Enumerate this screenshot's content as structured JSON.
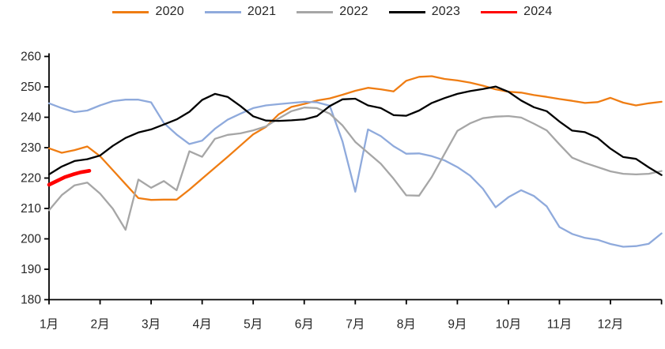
{
  "legend": {
    "items": [
      "2020",
      "2021",
      "2022",
      "2023",
      "2024"
    ]
  },
  "axes": {
    "y": {
      "min": 180,
      "max": 260,
      "step": 10,
      "tick_labels": [
        "180",
        "190",
        "200",
        "210",
        "220",
        "230",
        "240",
        "250",
        "260"
      ]
    },
    "x": {
      "tick_labels": [
        "1月",
        "2月",
        "3月",
        "4月",
        "5月",
        "6月",
        "7月",
        "8月",
        "9月",
        "10月",
        "11月",
        "12月"
      ]
    }
  },
  "colors": {
    "axis": "#000000",
    "text": "#262626",
    "background": "#ffffff"
  },
  "chart_data": {
    "type": "line",
    "title": "",
    "xlabel": "",
    "ylabel": "",
    "ylim": [
      180,
      260
    ],
    "x_unit": "month (0 = Jan 1, 12 = Dec 31)",
    "grid": false,
    "legend_position": "top-center",
    "series": [
      {
        "name": "2020",
        "color": "#EF7D13",
        "width": 2.3,
        "t0": 0,
        "dt": 0.25,
        "values": [
          229.8,
          228.3,
          229.2,
          230.4,
          227.2,
          222.6,
          218.0,
          213.4,
          212.8,
          212.9,
          212.9,
          216.2,
          219.8,
          223.4,
          227.0,
          230.7,
          234.4,
          236.8,
          241.0,
          243.4,
          244.4,
          245.5,
          246.2,
          247.4,
          248.7,
          249.7,
          249.2,
          248.5,
          252.0,
          253.3,
          253.5,
          252.6,
          252.1,
          251.4,
          250.4,
          249.2,
          248.4,
          248.1,
          247.3,
          246.7,
          246.0,
          245.4,
          244.7,
          245.0,
          246.4,
          244.8,
          243.9,
          244.6,
          245.1
        ]
      },
      {
        "name": "2021",
        "color": "#8FAADC",
        "width": 2.3,
        "t0": 0,
        "dt": 0.25,
        "values": [
          244.6,
          243.0,
          241.7,
          242.2,
          243.9,
          245.3,
          245.8,
          245.8,
          244.9,
          238.1,
          234.3,
          231.2,
          232.3,
          236.2,
          239.2,
          241.2,
          243.0,
          243.9,
          244.3,
          244.7,
          245.1,
          244.9,
          243.8,
          232.0,
          215.5,
          236.0,
          233.8,
          230.5,
          228.0,
          228.1,
          227.2,
          225.8,
          223.6,
          220.8,
          216.5,
          210.4,
          213.7,
          216.0,
          214.1,
          210.7,
          203.9,
          201.6,
          200.3,
          199.7,
          198.3,
          197.4,
          197.6,
          198.4,
          201.8
        ]
      },
      {
        "name": "2022",
        "color": "#A6A6A6",
        "width": 2.3,
        "t0": 0,
        "dt": 0.25,
        "values": [
          209.4,
          214.4,
          217.6,
          218.5,
          214.9,
          209.9,
          203.0,
          219.5,
          216.8,
          219.0,
          216.0,
          228.8,
          227.0,
          232.9,
          234.2,
          234.7,
          235.7,
          237.0,
          239.6,
          242.0,
          243.2,
          243.0,
          241.2,
          237.3,
          231.9,
          228.3,
          224.7,
          219.8,
          214.3,
          214.2,
          220.4,
          228.0,
          235.5,
          238.0,
          239.7,
          240.2,
          240.4,
          239.9,
          237.9,
          235.7,
          231.1,
          226.7,
          225.0,
          223.6,
          222.2,
          221.4,
          221.2,
          221.4,
          222.3
        ]
      },
      {
        "name": "2023",
        "color": "#000000",
        "width": 2.3,
        "t0": 0,
        "dt": 0.25,
        "values": [
          221.2,
          223.8,
          225.6,
          226.2,
          227.4,
          230.6,
          233.2,
          235.0,
          236.0,
          237.6,
          239.3,
          241.8,
          245.7,
          247.7,
          246.7,
          243.7,
          240.3,
          238.9,
          238.8,
          239.0,
          239.3,
          240.4,
          243.7,
          245.9,
          246.1,
          243.9,
          243.0,
          240.7,
          240.5,
          242.2,
          244.7,
          246.3,
          247.7,
          248.6,
          249.3,
          250.1,
          248.4,
          245.5,
          243.3,
          242.0,
          238.6,
          235.6,
          235.1,
          233.2,
          229.7,
          226.9,
          226.3,
          223.5,
          221.0
        ]
      },
      {
        "name": "2024",
        "color": "#FF0000",
        "width": 4.6,
        "thick": true,
        "t": [
          0,
          0.16,
          0.31,
          0.47,
          0.62,
          0.79
        ],
        "values": [
          217.8,
          219.1,
          220.3,
          221.2,
          221.9,
          222.4
        ]
      }
    ]
  }
}
